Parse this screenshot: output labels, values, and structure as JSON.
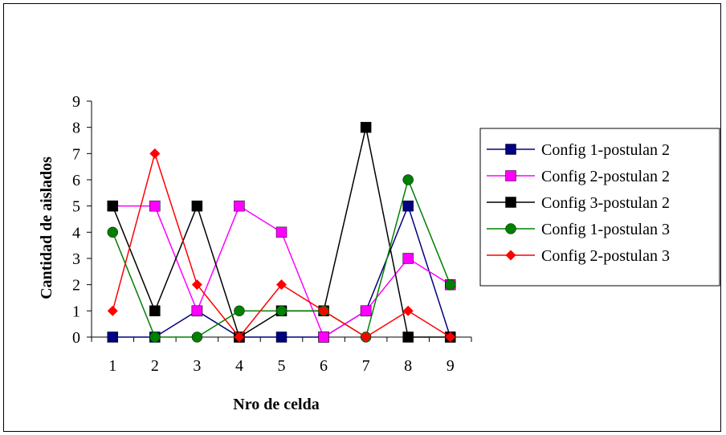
{
  "chart_data": {
    "type": "line",
    "title": "",
    "xlabel": "Nro de celda",
    "ylabel": "Cantidad de aislados",
    "categories": [
      "1",
      "2",
      "3",
      "4",
      "5",
      "6",
      "7",
      "8",
      "9"
    ],
    "ylim": [
      0,
      9
    ],
    "yticks": [
      "0",
      "1",
      "2",
      "3",
      "4",
      "5",
      "6",
      "7",
      "8",
      "9"
    ],
    "grid": false,
    "legend_position": "right",
    "series": [
      {
        "name": "Config 1-postulan 2",
        "color": "#000080",
        "marker": "square",
        "values": [
          0,
          0,
          1,
          0,
          0,
          0,
          1,
          5,
          0
        ]
      },
      {
        "name": "Config 2-postulan 2",
        "color": "#FF00FF",
        "marker": "square",
        "values": [
          5,
          5,
          1,
          5,
          4,
          0,
          1,
          3,
          2
        ]
      },
      {
        "name": "Config 3-postulan 2",
        "color": "#000000",
        "marker": "square",
        "values": [
          5,
          1,
          5,
          0,
          1,
          1,
          8,
          0,
          0
        ]
      },
      {
        "name": "Config 1-postulan 3",
        "color": "#008000",
        "marker": "circle",
        "values": [
          4,
          0,
          0,
          1,
          1,
          1,
          0,
          6,
          2
        ]
      },
      {
        "name": "Config 2-postulan 3",
        "color": "#FF0000",
        "marker": "diamond",
        "values": [
          1,
          7,
          2,
          0,
          2,
          1,
          0,
          1,
          0
        ]
      }
    ]
  }
}
